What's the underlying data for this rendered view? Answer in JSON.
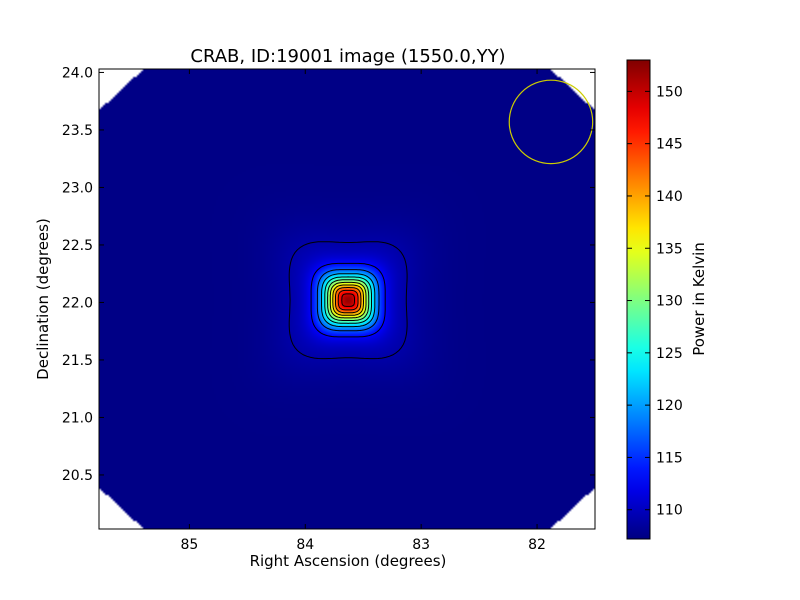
{
  "chart_data": {
    "type": "heatmap",
    "title": "CRAB, ID:19001 image (1550.0,YY)",
    "xlabel": "Right Ascension (degrees)",
    "ylabel": "Declination (degrees)",
    "colorbar_label": "Power in Kelvin",
    "colormap": "jet",
    "xlim": [
      85.78,
      81.5
    ],
    "ylim": [
      20.03,
      24.03
    ],
    "x_ticks": [
      85,
      84,
      83,
      82
    ],
    "x_tick_labels": [
      "85",
      "84",
      "83",
      "82"
    ],
    "y_ticks": [
      20.5,
      21.0,
      21.5,
      22.0,
      22.5,
      23.0,
      23.5,
      24.0
    ],
    "y_tick_labels": [
      "20.5",
      "21.0",
      "21.5",
      "22.0",
      "22.5",
      "23.0",
      "23.5",
      "24.0"
    ],
    "colorbar_range": [
      107.2,
      153
    ],
    "colorbar_ticks": [
      110,
      115,
      120,
      125,
      130,
      135,
      140,
      145,
      150
    ],
    "colorbar_tick_labels": [
      "110",
      "115",
      "120",
      "125",
      "130",
      "135",
      "140",
      "145",
      "150"
    ],
    "source": {
      "ra": 83.63,
      "dec": 22.02,
      "peak_kelvin": 152.5,
      "background_kelvin": 107.5
    },
    "contour_levels": [
      109,
      113,
      117,
      121,
      125,
      129,
      133,
      137,
      141,
      145,
      149
    ],
    "beam_circle": {
      "ra": 81.88,
      "dec": 23.57,
      "radius_deg": 0.36,
      "color": "#cccc00"
    },
    "grid": false
  }
}
